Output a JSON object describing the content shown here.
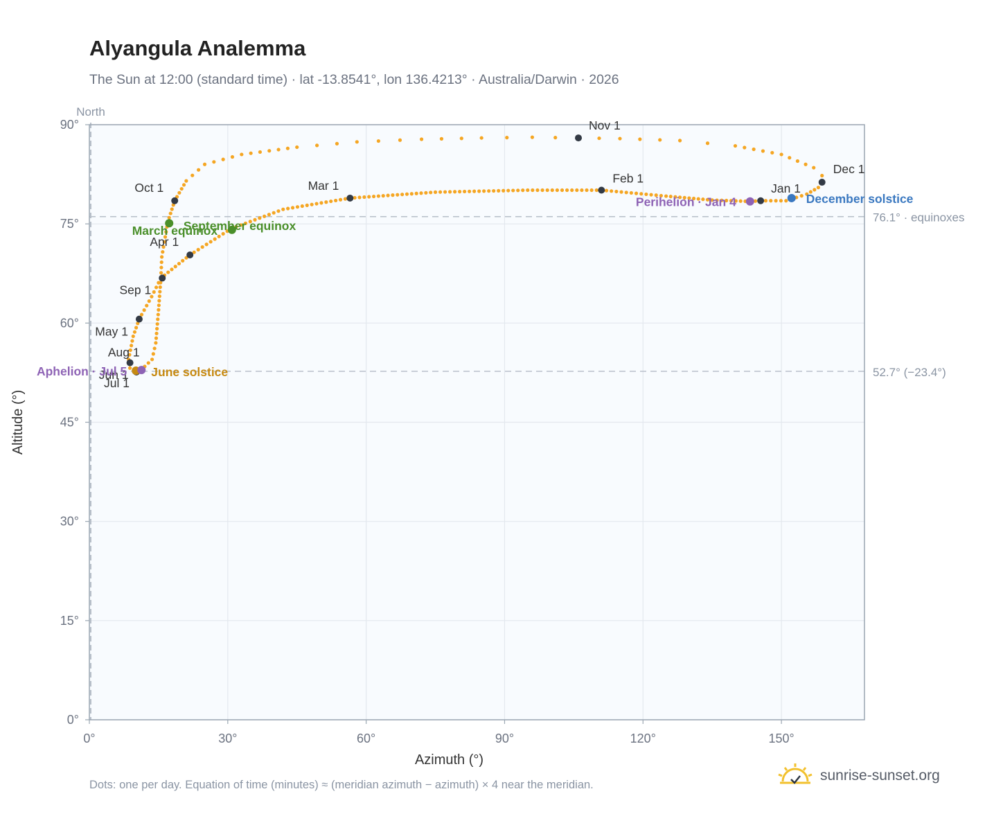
{
  "title": "Alyangula Analemma",
  "subtitle": "The Sun at 12:00 (standard time) · lat -13.8541°, lon 136.4213° · Australia/Darwin · 2026",
  "footnote": "Dots: one per day. Equation of time (minutes) ≈ (meridian azimuth − azimuth) × 4 near the meridian.",
  "brand": {
    "text": "sunrise-sunset.org",
    "icon": "sun-check-icon"
  },
  "colors": {
    "curve": "#f5a623",
    "month_marker": "#333a45",
    "equinox": "#4a8f2a",
    "june_solstice": "#c78a12",
    "december_solstice": "#3a78c0",
    "apsis": "#8e63b5",
    "plot_bg": "#f8fbfe",
    "grid": "#e3e8ee",
    "frame": "#9aa6b2",
    "ref_line": "#b8c0ca"
  },
  "chart_data": {
    "type": "scatter",
    "title": "Alyangula Analemma",
    "xlabel": "Azimuth (°)",
    "ylabel": "Altitude (°)",
    "xlim": [
      0,
      168
    ],
    "ylim": [
      0,
      90
    ],
    "xticks": [
      0,
      30,
      60,
      90,
      120,
      150
    ],
    "yticks": [
      0,
      15,
      30,
      45,
      60,
      75,
      90
    ],
    "tick_suffix": "°",
    "meridian_label": "North",
    "grid": true,
    "reference_lines": [
      {
        "y": 76.1,
        "label": "76.1° · equinoxes"
      },
      {
        "y": 52.7,
        "label": "52.7° (−23.4°)"
      }
    ],
    "path_anchors": [
      [
        145.5,
        78.5
      ],
      [
        151,
        78.5
      ],
      [
        155.5,
        79.5
      ],
      [
        158,
        80.5
      ],
      [
        158.8,
        81.3
      ],
      [
        158.8,
        82.3
      ],
      [
        157,
        83.5
      ],
      [
        150,
        85.5
      ],
      [
        140,
        86.8
      ],
      [
        128,
        87.6
      ],
      [
        115,
        87.9
      ],
      [
        106,
        88.0
      ],
      [
        96,
        88.1
      ],
      [
        85,
        88.0
      ],
      [
        72,
        87.8
      ],
      [
        58,
        87.4
      ],
      [
        45,
        86.6
      ],
      [
        33,
        85.5
      ],
      [
        25,
        84.0
      ],
      [
        21,
        81.5
      ],
      [
        18.5,
        78.5
      ],
      [
        17,
        75.3
      ],
      [
        15.7,
        70.0
      ],
      [
        15.5,
        66.8
      ],
      [
        15,
        62.0
      ],
      [
        14.4,
        57.0
      ],
      [
        13.6,
        54.5
      ],
      [
        11.2,
        52.9
      ],
      [
        10,
        52.7
      ],
      [
        8.8,
        53.2
      ],
      [
        8.5,
        54.5
      ],
      [
        9.5,
        58.0
      ],
      [
        10.8,
        60.6
      ],
      [
        13.5,
        64.0
      ],
      [
        15.5,
        66.8
      ],
      [
        21.8,
        70.3
      ],
      [
        30.8,
        74.3
      ],
      [
        42,
        77.2
      ],
      [
        56.5,
        78.9
      ],
      [
        75,
        79.8
      ],
      [
        95,
        80.1
      ],
      [
        111,
        80.1
      ],
      [
        125,
        79.2
      ],
      [
        135,
        78.6
      ],
      [
        143.2,
        78.4
      ],
      [
        145.5,
        78.5
      ]
    ],
    "month_markers": [
      {
        "label": "Jan 1",
        "az": 145.5,
        "alt": 78.5,
        "dx": 15,
        "dy": -12,
        "anchor": "start"
      },
      {
        "label": "Feb 1",
        "az": 111.0,
        "alt": 80.1,
        "dx": 16,
        "dy": -11,
        "anchor": "start"
      },
      {
        "label": "Mar 1",
        "az": 56.5,
        "alt": 78.9,
        "dx": -16,
        "dy": -12,
        "anchor": "end"
      },
      {
        "label": "Apr 1",
        "az": 21.8,
        "alt": 70.3,
        "dx": -16,
        "dy": -13,
        "anchor": "end"
      },
      {
        "label": "May 1",
        "az": 10.8,
        "alt": 60.6,
        "dx": -16,
        "dy": 24,
        "anchor": "end"
      },
      {
        "label": "Jun 1",
        "az": 10.0,
        "alt": 52.7,
        "dx": -10,
        "dy": 11,
        "anchor": "end"
      },
      {
        "label": "Jul 1",
        "az": 10.2,
        "alt": 52.6,
        "dx": -10,
        "dy": 22,
        "anchor": "end"
      },
      {
        "label": "Aug 1",
        "az": 8.8,
        "alt": 54.0,
        "dx": 14,
        "dy": -9,
        "anchor": "end"
      },
      {
        "label": "Sep 1",
        "az": 15.8,
        "alt": 66.8,
        "dx": -16,
        "dy": 23,
        "anchor": "end"
      },
      {
        "label": "Oct 1",
        "az": 18.5,
        "alt": 78.5,
        "dx": -16,
        "dy": -13,
        "anchor": "end"
      },
      {
        "label": "Nov 1",
        "az": 106.0,
        "alt": 88.0,
        "dx": 15,
        "dy": -12,
        "anchor": "start"
      },
      {
        "label": "Dec 1",
        "az": 158.8,
        "alt": 81.3,
        "dx": 16,
        "dy": -13,
        "anchor": "start"
      }
    ],
    "events": [
      {
        "label": "March equinox",
        "kind": "equinox",
        "az": 17.3,
        "alt": 75.1,
        "dx": 70,
        "dy": 17,
        "anchor": "end"
      },
      {
        "label": "September equinox",
        "kind": "equinox",
        "az": 30.9,
        "alt": 74.1,
        "dx": -70,
        "dy": 0,
        "anchor": "start"
      },
      {
        "label": "June solstice",
        "kind": "june_solstice",
        "az": 10.1,
        "alt": 52.8,
        "dx": 22,
        "dy": 8,
        "anchor": "start"
      },
      {
        "label": "December solstice",
        "kind": "december_solstice",
        "az": 152.2,
        "alt": 78.9,
        "dx": 21,
        "dy": 7,
        "anchor": "start"
      },
      {
        "label": "Aphelion · Jul 5",
        "kind": "apsis",
        "az": 11.3,
        "alt": 52.9,
        "dx": -21,
        "dy": 8,
        "anchor": "end"
      },
      {
        "label": "Perihelion · Jan 4",
        "kind": "apsis",
        "az": 143.2,
        "alt": 78.4,
        "dx": -20,
        "dy": 7,
        "anchor": "end"
      }
    ]
  }
}
